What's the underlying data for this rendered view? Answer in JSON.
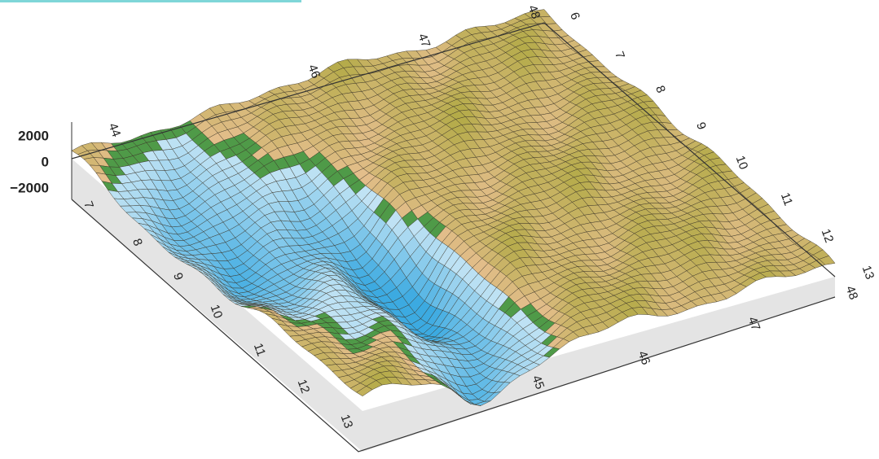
{
  "z_axis": {
    "ticks": [
      "2000",
      "0",
      "−2000"
    ]
  },
  "back_edge": {
    "labels": [
      "44",
      "46",
      "47",
      "48"
    ]
  },
  "right_edge": {
    "labels": [
      "6",
      "7",
      "8",
      "9",
      "10",
      "11",
      "12",
      "13"
    ]
  },
  "left_edge": {
    "labels": [
      "7",
      "8",
      "9",
      "10",
      "11",
      "12",
      "13"
    ]
  },
  "front_edge": {
    "labels": [
      "45",
      "46",
      "47",
      "48"
    ]
  }
}
